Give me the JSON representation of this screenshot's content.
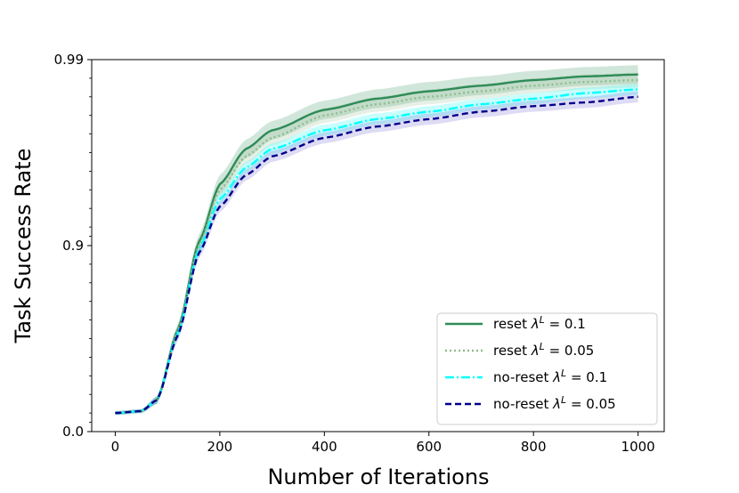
{
  "chart_data": {
    "type": "line",
    "title": "",
    "xlabel": "Number of Iterations",
    "ylabel": "Task Success Rate",
    "xlim": [
      -45,
      1050
    ],
    "x_ticks": [
      0,
      200,
      400,
      600,
      800,
      1000
    ],
    "y_ticks": [
      {
        "label": "0.0",
        "level": 0
      },
      {
        "label": "0.9",
        "level": 1
      },
      {
        "label": "0.99",
        "level": 2
      }
    ],
    "y_scale_note": "logit-style axis: 0.0 at bottom, 0.9 at middle, 0.99 at top",
    "legend_position": "lower-right",
    "series": [
      {
        "name": "reset λᴸ = 0.1",
        "label_prefix": "reset ",
        "label_value": " = 0.1",
        "color": "#2e8b57",
        "dash": "",
        "band_color": "#2e8b57",
        "x": [
          0,
          50,
          80,
          120,
          160,
          200,
          250,
          300,
          400,
          500,
          600,
          700,
          800,
          900,
          1000
        ],
        "level": [
          0.1,
          0.11,
          0.17,
          0.55,
          1.02,
          1.33,
          1.52,
          1.62,
          1.73,
          1.79,
          1.83,
          1.86,
          1.89,
          1.91,
          1.92
        ],
        "band": [
          0.01,
          0.01,
          0.02,
          0.03,
          0.04,
          0.05,
          0.05,
          0.05,
          0.05,
          0.05,
          0.05,
          0.05,
          0.05,
          0.05,
          0.05
        ]
      },
      {
        "name": "reset λᴸ = 0.05",
        "label_prefix": "reset ",
        "label_value": " = 0.05",
        "color": "#8fbc8f",
        "dash": "2,3",
        "band_color": "#8fbc8f",
        "x": [
          0,
          50,
          80,
          120,
          160,
          200,
          250,
          300,
          400,
          500,
          600,
          700,
          800,
          900,
          1000
        ],
        "level": [
          0.1,
          0.11,
          0.17,
          0.54,
          1.0,
          1.3,
          1.48,
          1.58,
          1.7,
          1.76,
          1.8,
          1.83,
          1.86,
          1.88,
          1.89
        ],
        "band": [
          0.01,
          0.01,
          0.02,
          0.03,
          0.04,
          0.04,
          0.04,
          0.04,
          0.04,
          0.04,
          0.04,
          0.04,
          0.04,
          0.04,
          0.04
        ]
      },
      {
        "name": "no-reset λᴸ = 0.1",
        "label_prefix": "no-reset ",
        "label_value": " = 0.1",
        "color": "#00ffff",
        "dash": "10,3,2,3",
        "band_color": "#00ffff",
        "x": [
          0,
          50,
          80,
          120,
          160,
          200,
          250,
          300,
          400,
          500,
          600,
          700,
          800,
          900,
          1000
        ],
        "level": [
          0.1,
          0.11,
          0.17,
          0.53,
          0.98,
          1.25,
          1.42,
          1.52,
          1.62,
          1.68,
          1.72,
          1.76,
          1.79,
          1.82,
          1.84
        ],
        "band": [
          0.01,
          0.01,
          0.02,
          0.03,
          0.03,
          0.03,
          0.03,
          0.03,
          0.03,
          0.03,
          0.03,
          0.03,
          0.03,
          0.03,
          0.03
        ]
      },
      {
        "name": "no-reset λᴸ = 0.05",
        "label_prefix": "no-reset ",
        "label_value": " = 0.05",
        "color": "#00008b",
        "dash": "7,4",
        "band_color": "#6a5acd",
        "x": [
          0,
          50,
          80,
          120,
          160,
          200,
          250,
          300,
          400,
          500,
          600,
          700,
          800,
          900,
          1000
        ],
        "level": [
          0.1,
          0.11,
          0.17,
          0.52,
          0.96,
          1.21,
          1.38,
          1.48,
          1.58,
          1.64,
          1.68,
          1.72,
          1.75,
          1.77,
          1.8
        ],
        "band": [
          0.01,
          0.01,
          0.02,
          0.03,
          0.03,
          0.03,
          0.03,
          0.03,
          0.03,
          0.03,
          0.03,
          0.03,
          0.03,
          0.03,
          0.03
        ]
      }
    ]
  }
}
